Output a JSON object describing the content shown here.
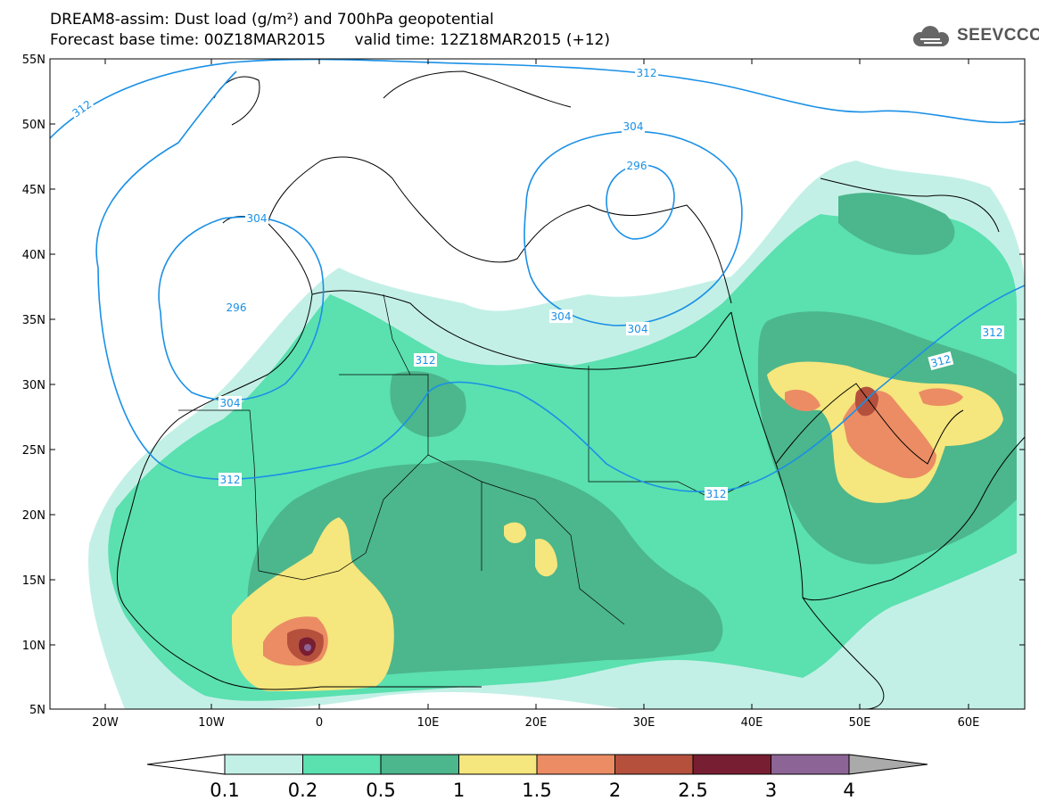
{
  "header": {
    "line1": "DREAM8-assim: Dust load (g/m²) and 700hPa geopotential",
    "line2": "Forecast base time: 00Z18MAR2015      valid time: 12Z18MAR2015 (+12)",
    "logo_text": "SEEVCCC",
    "logo_icon": "cloud-icon"
  },
  "map": {
    "lon_labels": [
      "20W",
      "10W",
      "0",
      "10E",
      "20E",
      "30E",
      "40E",
      "50E",
      "60E"
    ],
    "lat_labels": [
      "55N",
      "50N",
      "45N",
      "40N",
      "35N",
      "30N",
      "25N",
      "20N",
      "15N",
      "10N",
      "5N"
    ],
    "contour_labels": [
      "312",
      "312",
      "304",
      "296",
      "304",
      "296",
      "304",
      "304",
      "304",
      "312",
      "312",
      "312",
      "312",
      "312"
    ],
    "colors": {
      "contour": "#1a90e6",
      "coast": "#000000"
    }
  },
  "colorbar": {
    "ticks": [
      "0.1",
      "0.2",
      "0.5",
      "1",
      "1.5",
      "2",
      "2.5",
      "3",
      "4"
    ],
    "colors": [
      "#c3f0e6",
      "#5be0b0",
      "#4cb68c",
      "#f5e67d",
      "#eb8c64",
      "#b4503c",
      "#781e32",
      "#8c6496"
    ],
    "low_arrow_color": "#ffffff",
    "high_arrow_color": "#aaaaaa"
  }
}
